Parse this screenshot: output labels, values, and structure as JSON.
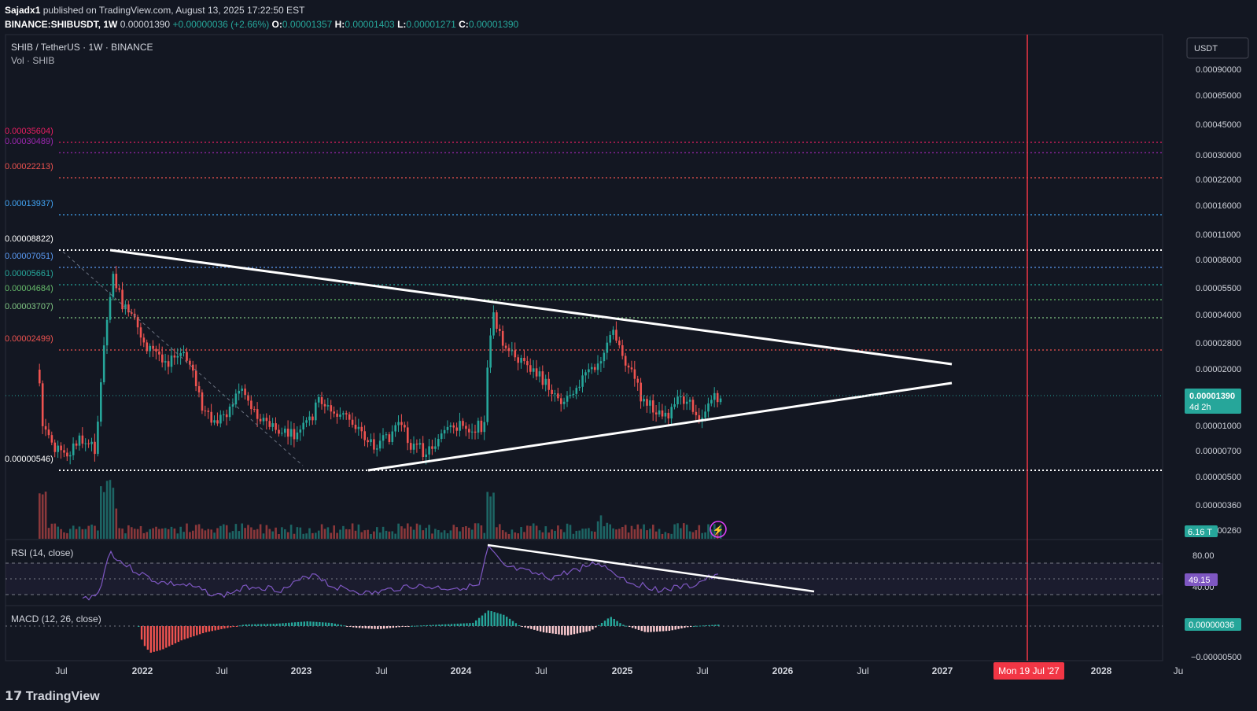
{
  "header": {
    "author": "Sajadx1",
    "published": "published on TradingView.com, August 13, 2025 17:22:50 EST",
    "symbol": "BINANCE:SHIBUSDT, 1W",
    "last": "0.00001390",
    "change": "+0.00000036 (+2.66%)",
    "o_label": "O:",
    "o": "0.00001357",
    "h_label": "H:",
    "h": "0.00001403",
    "l_label": "L:",
    "l": "0.00001271",
    "c_label": "C:",
    "c": "0.00001390"
  },
  "legend": {
    "title": "SHIB / TetherUS · 1W · BINANCE",
    "vol": "Vol · SHIB"
  },
  "rsi_label": "RSI (14, close)",
  "macd_label": "MACD (12, 26, close)",
  "currency_button": "USDT",
  "brand": "TradingView",
  "colors": {
    "bg": "#131722",
    "up": "#26a69a",
    "down": "#ef5350",
    "rsi": "#7e57c2",
    "accent_red": "#f23645"
  },
  "chart_data": {
    "type": "candlestick",
    "y_scale": "log",
    "x_ticks": [
      "Jul",
      "2022",
      "Jul",
      "2023",
      "Jul",
      "2024",
      "Jul",
      "2025",
      "Jul",
      "2026",
      "Jul",
      "2027",
      "Mon 19 Jul '27",
      "2028",
      "Ju"
    ],
    "y_ticks": [
      "0.00090000",
      "0.00065000",
      "0.00045000",
      "0.00030000",
      "0.00022000",
      "0.00016000",
      "0.00011000",
      "0.00008000",
      "0.00005500",
      "0.00004000",
      "0.00002800",
      "0.00002000",
      "0.00001000",
      "0.00000700",
      "0.00000500",
      "0.00000360",
      "0.00000260"
    ],
    "price_label": "0.00001390",
    "countdown": "4d 2h",
    "volume_label": "6.16 T",
    "levels": [
      {
        "label": "0.00035604)",
        "color": "#e91e63"
      },
      {
        "label": "0.00030489)",
        "color": "#9c27b0"
      },
      {
        "label": "0.00022213)",
        "color": "#ef5350"
      },
      {
        "label": "0.00013937)",
        "color": "#42a5f5"
      },
      {
        "label": "0.00008822)",
        "color": "#ffffff"
      },
      {
        "label": "0.00007051)",
        "color": "#5b9cf6"
      },
      {
        "label": "0.00005661)",
        "color": "#26a69a"
      },
      {
        "label": "0.00004684)",
        "color": "#66bb6a"
      },
      {
        "label": "0.00003707)",
        "color": "#81c784"
      },
      {
        "label": "0.00002499)",
        "color": "#ef5350"
      },
      {
        "label": "0.00000546)",
        "color": "#ffffff"
      }
    ],
    "rsi": {
      "ticks": [
        "80.00",
        "40.00"
      ],
      "value": "49.15"
    },
    "macd": {
      "value": "0.00000036",
      "tick": "−0.00000500"
    }
  }
}
